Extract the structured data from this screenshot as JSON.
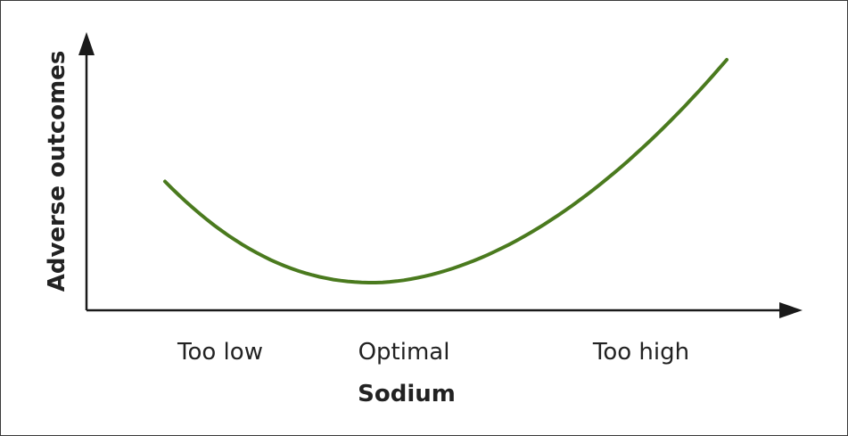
{
  "chart_data": {
    "type": "line",
    "title": "",
    "xlabel": "Sodium",
    "ylabel": "Adverse outcomes",
    "categories": [
      "Too low",
      "Optimal",
      "Too high"
    ],
    "series": [
      {
        "x": [
          0.0,
          0.37,
          1.0
        ],
        "y": [
          0.454,
          0.0,
          1.0
        ]
      }
    ],
    "grid": false,
    "legend": "none",
    "line_color": "#4a7a1e",
    "axis_color": "#1a1a1a"
  }
}
